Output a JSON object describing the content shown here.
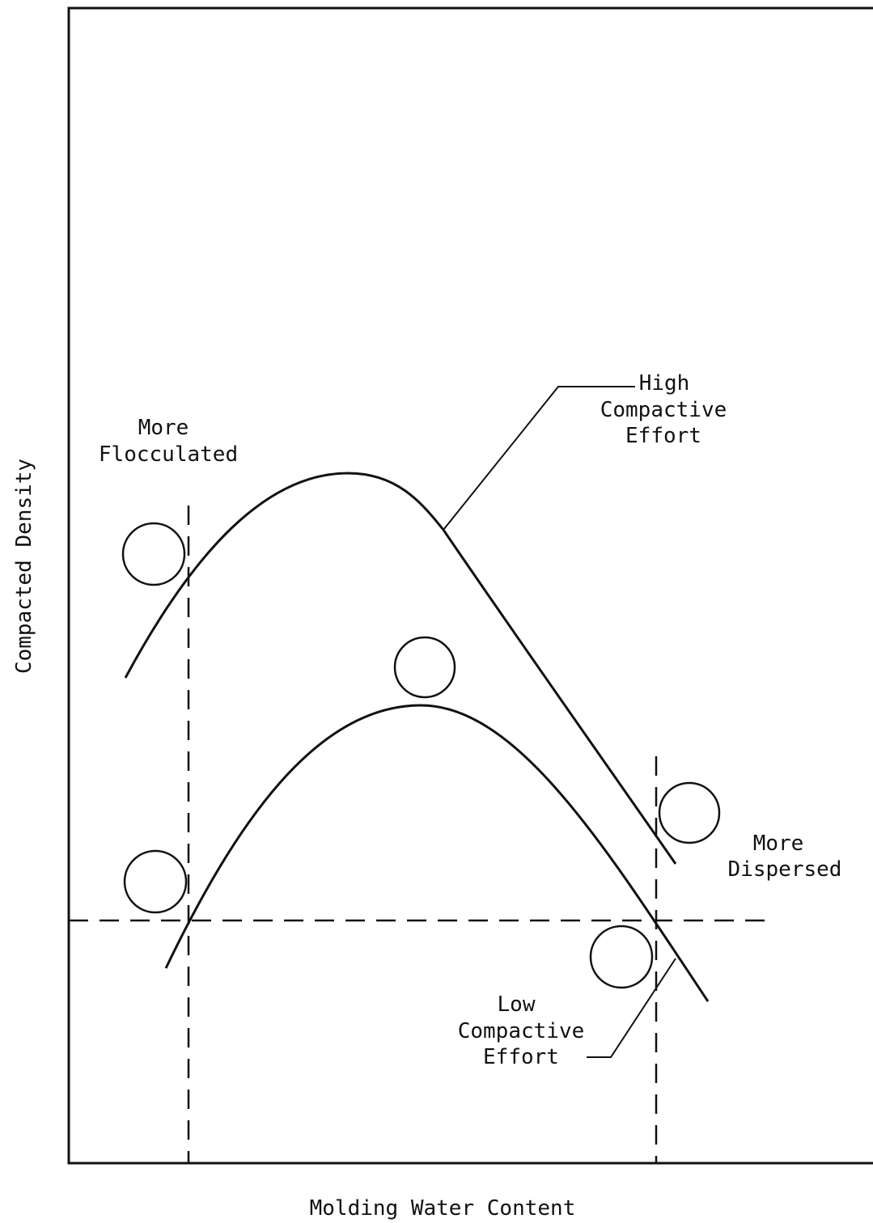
{
  "axes": {
    "y_label": "Compacted Density",
    "x_label": "Molding Water Content"
  },
  "labels": {
    "flocculated": [
      "More",
      "Flocculated"
    ],
    "high_effort": [
      "High",
      "Compactive",
      "Effort"
    ],
    "dispersed": [
      "More",
      "Dispersed"
    ],
    "low_effort": [
      "Low",
      "Compactive",
      "Effort"
    ]
  }
}
